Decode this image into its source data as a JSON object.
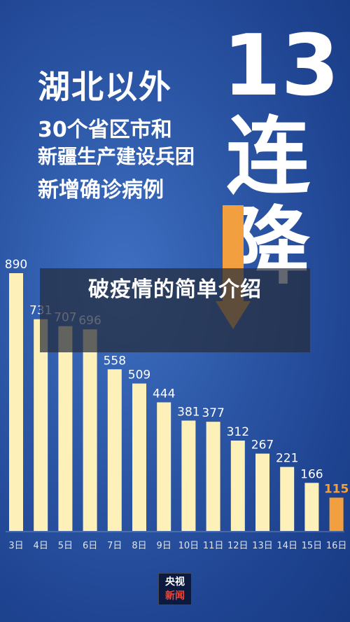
{
  "poster": {
    "line1": "湖北以外",
    "line2": "30个省区市和",
    "line3": "新疆生产建设兵团",
    "line4": "新增确诊病例",
    "big_number": "13",
    "big_char1": "连",
    "big_char2": "降"
  },
  "overlay": {
    "title": "破疫情的简单介绍"
  },
  "logo": {
    "line1": "央视",
    "line2": "新闻"
  },
  "colors": {
    "background": "#2c57a6",
    "bar": "#fdf0b8",
    "highlight": "#f2a03f",
    "text": "#ffffff"
  },
  "chart_data": {
    "type": "bar",
    "categories": [
      "3日",
      "4日",
      "5日",
      "6日",
      "7日",
      "8日",
      "9日",
      "10日",
      "11日",
      "12日",
      "13日",
      "14日",
      "15日",
      "16日"
    ],
    "values": [
      890,
      731,
      707,
      696,
      558,
      509,
      444,
      381,
      377,
      312,
      267,
      221,
      166,
      115
    ],
    "highlight_index": 13,
    "title": "",
    "xlabel": "",
    "ylabel": "",
    "ylim": [
      0,
      890
    ]
  }
}
